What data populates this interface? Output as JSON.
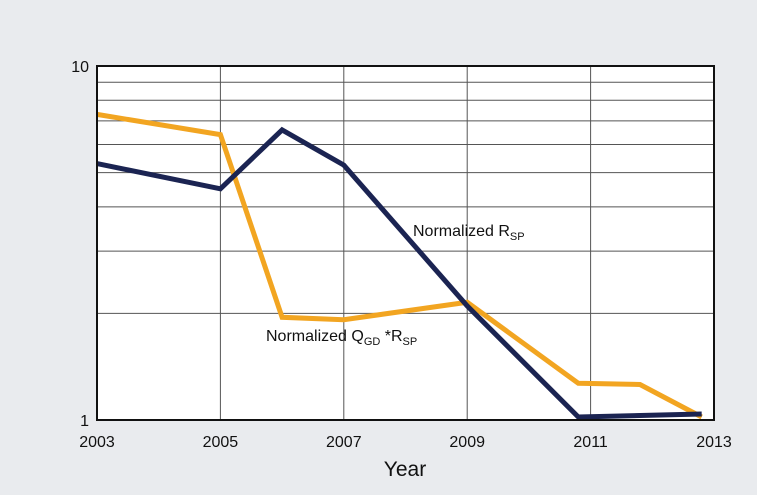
{
  "colors": {
    "background": "#e9ebee",
    "plot_background": "#ffffff",
    "grid": "#555555",
    "frame": "#111111",
    "rsp_series": "#1b2452",
    "qgd_series": "#f2a521"
  },
  "chart_data": {
    "type": "line",
    "title": "",
    "xlabel": "Year",
    "ylabel": "",
    "yscale": "log",
    "xlim": [
      2003,
      2013
    ],
    "ylim": [
      1,
      10
    ],
    "x_ticks": [
      "2003",
      "2005",
      "2007",
      "2009",
      "2011",
      "2013"
    ],
    "y_tick_labels": [
      "10",
      "1"
    ],
    "grid": true,
    "series": [
      {
        "name": "Normalized RSP",
        "label_main": "Normalized R",
        "label_sub": "SP",
        "x": [
          2003,
          2005,
          2006,
          2007,
          2009,
          2010.8,
          2012.8
        ],
        "y": [
          5.3,
          4.5,
          6.6,
          5.25,
          2.1,
          1.02,
          1.04
        ]
      },
      {
        "name": "Normalized QGD *RSP",
        "label_main": "Normalized Q",
        "label_sub": "GD",
        "label_mid": " *R",
        "label_sub2": "SP",
        "x": [
          2003,
          2005,
          2006,
          2007,
          2009,
          2010.8,
          2011.8,
          2012.8
        ],
        "y": [
          7.3,
          6.4,
          1.95,
          1.92,
          2.15,
          1.27,
          1.26,
          1.02
        ]
      }
    ]
  }
}
